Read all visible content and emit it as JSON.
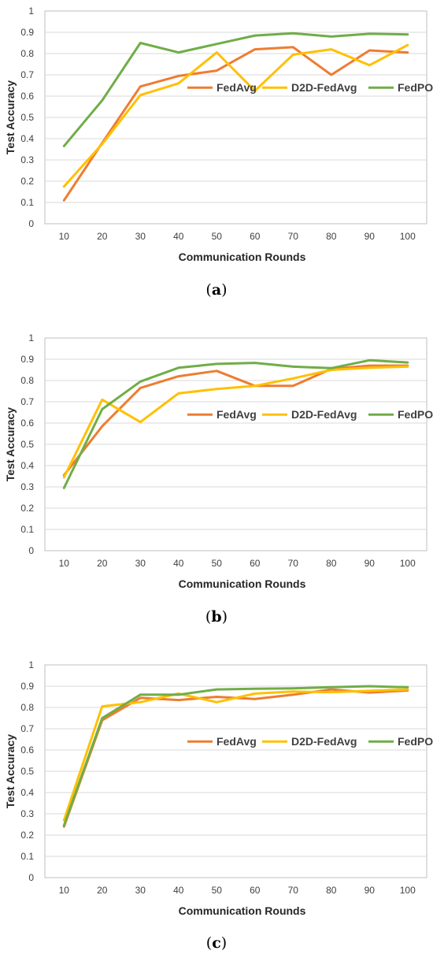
{
  "chart_data": [
    {
      "type": "line",
      "caption_open": "(",
      "caption_letter": "a",
      "caption_close": ")",
      "xlabel": "Communication Rounds",
      "ylabel": "Test Accuracy",
      "ylim": [
        0,
        1
      ],
      "yticks": [
        "0",
        "0.1",
        "0.2",
        "0.3",
        "0.4",
        "0.5",
        "0.6",
        "0.7",
        "0.8",
        "0.9",
        "1"
      ],
      "categories": [
        "10",
        "20",
        "30",
        "40",
        "50",
        "60",
        "70",
        "80",
        "90",
        "100"
      ],
      "grid": true,
      "legend_position": "middle-right",
      "series": [
        {
          "name": "FedAvg",
          "color": "#ED7D31",
          "values": [
            0.11,
            0.38,
            0.645,
            0.695,
            0.72,
            0.82,
            0.83,
            0.7,
            0.815,
            0.805
          ]
        },
        {
          "name": "D2D-FedAvg",
          "color": "#FFC000",
          "values": [
            0.175,
            0.375,
            0.605,
            0.66,
            0.805,
            0.625,
            0.795,
            0.82,
            0.745,
            0.84
          ]
        },
        {
          "name": "FedPO",
          "color": "#70AD47",
          "values": [
            0.365,
            0.58,
            0.85,
            0.805,
            0.845,
            0.885,
            0.895,
            0.88,
            0.893,
            0.89
          ]
        }
      ]
    },
    {
      "type": "line",
      "caption_open": "(",
      "caption_letter": "b",
      "caption_close": ")",
      "xlabel": "Communication Rounds",
      "ylabel": "Test Accuracy",
      "ylim": [
        0,
        1
      ],
      "yticks": [
        "0",
        "0.1",
        "0.2",
        "0.3",
        "0.4",
        "0.5",
        "0.6",
        "0.7",
        "0.8",
        "0.9",
        "1"
      ],
      "categories": [
        "10",
        "20",
        "30",
        "40",
        "50",
        "60",
        "70",
        "80",
        "90",
        "100"
      ],
      "grid": true,
      "legend_position": "middle-right",
      "series": [
        {
          "name": "FedAvg",
          "color": "#ED7D31",
          "values": [
            0.355,
            0.585,
            0.765,
            0.82,
            0.845,
            0.775,
            0.775,
            0.855,
            0.87,
            0.87
          ]
        },
        {
          "name": "D2D-FedAvg",
          "color": "#FFC000",
          "values": [
            0.345,
            0.71,
            0.605,
            0.74,
            0.76,
            0.775,
            0.81,
            0.85,
            0.86,
            0.865
          ]
        },
        {
          "name": "FedPO",
          "color": "#70AD47",
          "values": [
            0.295,
            0.665,
            0.795,
            0.86,
            0.878,
            0.883,
            0.865,
            0.858,
            0.895,
            0.885
          ]
        }
      ]
    },
    {
      "type": "line",
      "caption_open": "(",
      "caption_letter": "c",
      "caption_close": ")",
      "xlabel": "Communication Rounds",
      "ylabel": "Test Accuracy",
      "ylim": [
        0,
        1
      ],
      "yticks": [
        "0",
        "0.1",
        "0.2",
        "0.3",
        "0.4",
        "0.5",
        "0.6",
        "0.7",
        "0.8",
        "0.9",
        "1"
      ],
      "categories": [
        "10",
        "20",
        "30",
        "40",
        "50",
        "60",
        "70",
        "80",
        "90",
        "100"
      ],
      "grid": true,
      "legend_position": "middle-right",
      "series": [
        {
          "name": "FedAvg",
          "color": "#ED7D31",
          "values": [
            0.24,
            0.74,
            0.845,
            0.835,
            0.85,
            0.84,
            0.86,
            0.885,
            0.87,
            0.88
          ]
        },
        {
          "name": "D2D-FedAvg",
          "color": "#FFC000",
          "values": [
            0.27,
            0.805,
            0.825,
            0.865,
            0.825,
            0.865,
            0.875,
            0.872,
            0.878,
            0.885
          ]
        },
        {
          "name": "FedPO",
          "color": "#70AD47",
          "values": [
            0.245,
            0.75,
            0.86,
            0.86,
            0.885,
            0.888,
            0.89,
            0.895,
            0.9,
            0.895
          ]
        }
      ]
    }
  ]
}
